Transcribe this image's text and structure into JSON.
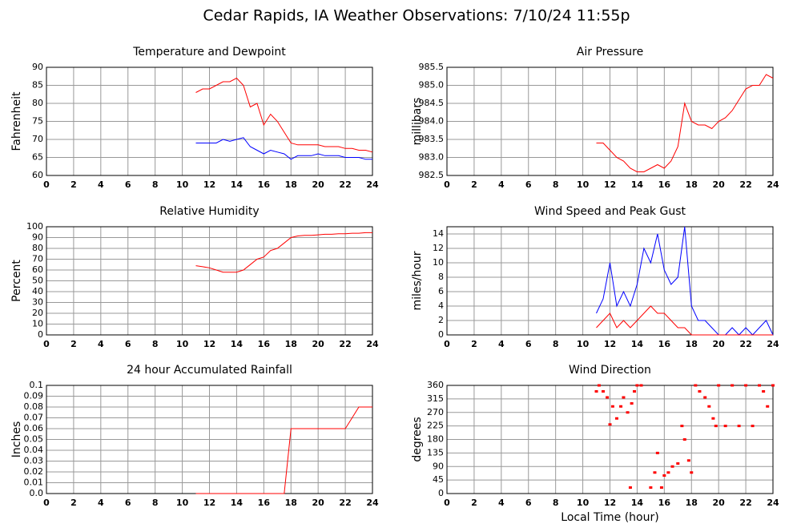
{
  "title": "Cedar Rapids, IA Weather Observations: 7/10/24 11:55p",
  "chart_data": [
    {
      "type": "line",
      "title": "Temperature and Dewpoint",
      "ylabel": "Fahrenheit",
      "x": [
        11,
        11.5,
        12,
        12.5,
        13,
        13.5,
        14,
        14.5,
        15,
        15.5,
        16,
        16.5,
        17,
        17.5,
        18,
        18.5,
        19,
        19.5,
        20,
        20.5,
        21,
        21.5,
        22,
        22.5,
        23,
        23.5,
        24
      ],
      "series": [
        {
          "color": "#ff0000",
          "values": [
            83,
            84,
            84,
            85,
            86,
            86,
            87,
            85,
            79,
            80,
            74,
            77,
            75,
            72,
            69,
            68.5,
            68.5,
            68.5,
            68.5,
            68,
            68,
            68,
            67.5,
            67.5,
            67,
            67,
            66.5
          ]
        },
        {
          "color": "#0000ff",
          "values": [
            69,
            69,
            69,
            69,
            70,
            69.5,
            70,
            70.5,
            68,
            67,
            66,
            67,
            66.5,
            66,
            64.5,
            65.5,
            65.5,
            65.5,
            66,
            65.5,
            65.5,
            65.5,
            65,
            65,
            65,
            64.5,
            64.5
          ]
        }
      ],
      "xlim": [
        0,
        24
      ],
      "xticks": [
        0,
        2,
        4,
        6,
        8,
        10,
        12,
        14,
        16,
        18,
        20,
        22,
        24
      ],
      "ylim": [
        60,
        90
      ],
      "yticks": [
        60,
        65,
        70,
        75,
        80,
        85,
        90
      ],
      "grid": true
    },
    {
      "type": "line",
      "title": "Air Pressure",
      "ylabel": "millibars",
      "x": [
        11,
        11.5,
        12,
        12.5,
        13,
        13.5,
        14,
        14.5,
        15,
        15.5,
        16,
        16.5,
        17,
        17.5,
        18,
        18.5,
        19,
        19.5,
        20,
        20.5,
        21,
        21.5,
        22,
        22.5,
        23,
        23.5,
        24
      ],
      "series": [
        {
          "color": "#ff0000",
          "values": [
            983.4,
            983.4,
            983.2,
            983.0,
            982.9,
            982.7,
            982.6,
            982.6,
            982.7,
            982.8,
            982.7,
            982.9,
            983.3,
            984.5,
            984.0,
            983.9,
            983.9,
            983.8,
            984.0,
            984.1,
            984.3,
            984.6,
            984.9,
            985.0,
            985.0,
            985.3,
            985.2
          ]
        }
      ],
      "xlim": [
        0,
        24
      ],
      "xticks": [
        0,
        2,
        4,
        6,
        8,
        10,
        12,
        14,
        16,
        18,
        20,
        22,
        24
      ],
      "ylim": [
        982.5,
        985.5
      ],
      "yticks": [
        982.5,
        {
          "value": 983,
          "label": "983.0"
        },
        983.5,
        {
          "value": 984,
          "label": "984.0"
        },
        984.5,
        {
          "value": 985,
          "label": "985.0"
        },
        985.5
      ],
      "grid": true
    },
    {
      "type": "line",
      "title": "Relative Humidity",
      "ylabel": "Percent",
      "x": [
        11,
        11.5,
        12,
        12.5,
        13,
        13.5,
        14,
        14.5,
        15,
        15.5,
        16,
        16.5,
        17,
        17.5,
        18,
        18.5,
        19,
        19.5,
        20,
        20.5,
        21,
        21.5,
        22,
        22.5,
        23,
        23.5,
        24
      ],
      "series": [
        {
          "color": "#ff0000",
          "values": [
            64,
            63,
            62,
            60,
            58,
            58,
            58,
            60,
            65,
            70,
            72,
            78,
            80,
            85,
            90,
            91.5,
            92,
            92,
            92.5,
            93,
            93,
            93.5,
            93.5,
            94,
            94,
            94.5,
            94.5
          ]
        }
      ],
      "xlim": [
        0,
        24
      ],
      "xticks": [
        0,
        2,
        4,
        6,
        8,
        10,
        12,
        14,
        16,
        18,
        20,
        22,
        24
      ],
      "ylim": [
        0,
        100
      ],
      "yticks": [
        0,
        10,
        20,
        30,
        40,
        50,
        60,
        70,
        80,
        90,
        100
      ],
      "grid": true
    },
    {
      "type": "line",
      "title": "Wind Speed and Peak Gust",
      "ylabel": "miles/hour",
      "x": [
        11,
        11.5,
        12,
        12.5,
        13,
        13.5,
        14,
        14.5,
        15,
        15.5,
        16,
        16.5,
        17,
        17.5,
        18,
        18.5,
        19,
        19.5,
        20,
        20.5,
        21,
        21.5,
        22,
        22.5,
        23,
        23.5,
        24
      ],
      "series": [
        {
          "color": "#0000ff",
          "values": [
            3,
            5,
            10,
            4,
            6,
            4,
            7,
            12,
            10,
            14,
            9,
            7,
            8,
            15,
            4,
            2,
            2,
            1,
            0,
            0,
            1,
            0,
            1,
            0,
            1,
            2,
            0
          ]
        },
        {
          "color": "#ff0000",
          "values": [
            1,
            2,
            3,
            1,
            2,
            1,
            2,
            3,
            4,
            3,
            3,
            2,
            1,
            1,
            0,
            0,
            0,
            0,
            0,
            0,
            0,
            0,
            0,
            0,
            0,
            0,
            0
          ]
        }
      ],
      "xlim": [
        0,
        24
      ],
      "xticks": [
        0,
        2,
        4,
        6,
        8,
        10,
        12,
        14,
        16,
        18,
        20,
        22,
        24
      ],
      "ylim": [
        0,
        15
      ],
      "yticks": [
        0,
        2,
        4,
        6,
        8,
        10,
        12,
        14
      ],
      "grid": true
    },
    {
      "type": "line",
      "title": "24 hour Accumulated Rainfall",
      "ylabel": "Inches",
      "x": [
        11,
        11.5,
        12,
        12.5,
        13,
        13.5,
        14,
        14.5,
        15,
        15.5,
        16,
        16.5,
        17,
        17.5,
        18,
        18.5,
        19,
        19.5,
        20,
        20.5,
        21,
        21.5,
        22,
        22.5,
        23,
        23.5,
        24
      ],
      "series": [
        {
          "color": "#ff0000",
          "values": [
            0,
            0,
            0,
            0,
            0,
            0,
            0,
            0,
            0,
            0,
            0,
            0,
            0,
            0,
            0.06,
            0.06,
            0.06,
            0.06,
            0.06,
            0.06,
            0.06,
            0.06,
            0.06,
            0.07,
            0.08,
            0.08,
            0.08
          ]
        }
      ],
      "xlim": [
        0,
        24
      ],
      "xticks": [
        0,
        2,
        4,
        6,
        8,
        10,
        12,
        14,
        16,
        18,
        20,
        22,
        24
      ],
      "ylim": [
        0,
        0.1
      ],
      "yticks": [
        {
          "value": 0,
          "label": "0.0"
        },
        0.01,
        0.02,
        0.03,
        0.04,
        0.05,
        0.06,
        0.07,
        0.08,
        0.09,
        0.1
      ],
      "grid": true
    },
    {
      "type": "scatter",
      "title": "Wind Direction",
      "ylabel": "degrees",
      "xlabel": "Local Time (hour)",
      "color": "#ff0000",
      "x": [
        11,
        11.2,
        11.5,
        11.8,
        12,
        12.2,
        12.5,
        12.8,
        13,
        13.3,
        13.5,
        13.6,
        13.8,
        14,
        14.3,
        15,
        15.3,
        15.5,
        15.8,
        16,
        16.3,
        16.6,
        17,
        17.3,
        17.5,
        17.8,
        18,
        18.3,
        18.6,
        19,
        19.3,
        19.6,
        19.8,
        20,
        20.5,
        21,
        21.5,
        22,
        22.5,
        23,
        23.3,
        23.6,
        24
      ],
      "values": [
        340,
        360,
        340,
        320,
        230,
        290,
        250,
        290,
        320,
        270,
        20,
        300,
        340,
        360,
        360,
        20,
        70,
        135,
        20,
        60,
        70,
        90,
        100,
        225,
        180,
        110,
        70,
        360,
        340,
        320,
        290,
        250,
        225,
        360,
        225,
        360,
        225,
        360,
        225,
        360,
        340,
        290,
        360
      ],
      "xlim": [
        0,
        24
      ],
      "xticks": [
        0,
        2,
        4,
        6,
        8,
        10,
        12,
        14,
        16,
        18,
        20,
        22,
        24
      ],
      "ylim": [
        0,
        360
      ],
      "yticks": [
        0,
        45,
        90,
        135,
        180,
        225,
        270,
        315,
        360
      ],
      "grid": true
    }
  ]
}
